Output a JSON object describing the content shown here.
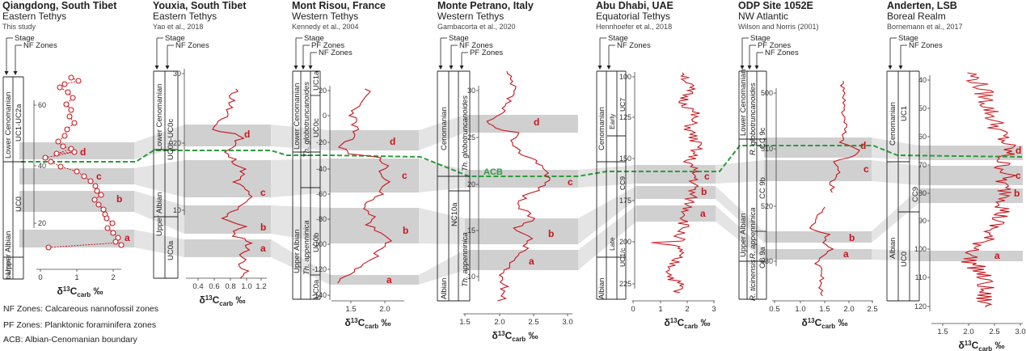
{
  "sections": [
    {
      "title": "Qiangdong, South Tibet",
      "region": "Eastern Tethys",
      "source": "This study",
      "fixed": [
        "Stage",
        "NF Zones"
      ],
      "stages": [
        "Lower Cenomanian",
        "Upper Albian"
      ],
      "zones": [
        "UC1-UC2a",
        "UC0",
        "barren"
      ],
      "depth_ticks": [
        "60",
        "40",
        "20"
      ],
      "x_ticks": [
        "0",
        "1",
        "2"
      ],
      "events": [
        "d",
        "c",
        "b",
        "a"
      ]
    },
    {
      "title": "Youxia, South Tibet",
      "region": "Eastern Tethys",
      "source": "Yao et al., 2018",
      "fixed": [
        "Stage",
        "NF Zones"
      ],
      "stages": [
        "Lower Cenomanian",
        "Upper Albian"
      ],
      "zones": [
        "UC0b-UC0c",
        "UC0a"
      ],
      "depth_ticks": [
        "30",
        "20",
        "10"
      ],
      "x_ticks": [
        "0.4",
        "0.6",
        "0.8",
        "1.0",
        "1.2"
      ],
      "events": [
        "d",
        "c",
        "b",
        "a"
      ]
    },
    {
      "title": "Mont Risou, France",
      "region": "Western Tethys",
      "source": "Kennedy et al., 2004",
      "fixed": [
        "Stage",
        "PF Zones",
        "NF Zones"
      ],
      "stages": [
        "Lower Cenomanian",
        "Upper Albian"
      ],
      "zones": [
        "Th. globotruncanoides",
        "Th. appenninica",
        "UC1a",
        "UC0c",
        "UC0b",
        "UC0a"
      ],
      "depth_ticks": [
        "20",
        "0",
        "-20",
        "-40",
        "-60",
        "-80",
        "-100",
        "-120",
        "-140"
      ],
      "x_ticks": [
        "1.5",
        "2.0"
      ],
      "events": [
        "d",
        "c",
        "b",
        "a"
      ]
    },
    {
      "title": "Monte Petrano, Italy",
      "region": "Western Tethys",
      "source": "Gambacorta et al., 2020",
      "fixed": [
        "Stage",
        "NF Zones",
        "PF Zones"
      ],
      "stages": [
        "Cenomanian",
        "Albian"
      ],
      "zones": [
        "NC10a",
        "Th. globotruncanoides",
        "Th. appenninica"
      ],
      "depth_ticks": [
        "30",
        "25",
        "20",
        "15",
        "10"
      ],
      "x_ticks": [
        "1.5",
        "2.0",
        "2.5",
        "3.0"
      ],
      "events": [
        "d",
        "c",
        "b",
        "a"
      ],
      "acb_label": "ACB"
    },
    {
      "title": "Abu Dhabi, UAE",
      "region": "Equatorial Tethys",
      "source": "Hennhoefer et al., 2018",
      "fixed": [
        "Stage",
        "NF Zones"
      ],
      "stages": [
        "Cenomanian",
        "Early",
        "Late",
        "Albian"
      ],
      "zones": [
        "UC7",
        "CC9",
        "UC1/c"
      ],
      "depth_ticks": [
        "100",
        "125",
        "150",
        "175",
        "200",
        "225"
      ],
      "x_ticks": [
        "0",
        "1",
        "2",
        "3"
      ],
      "events": [
        "c",
        "b",
        "a"
      ]
    },
    {
      "title": "ODP Site 1052E",
      "region": "NW Atlantic",
      "source": "Wilson and Norris (2001)",
      "fixed": [
        "Stage",
        "PF Zones",
        "NF Zones"
      ],
      "stages": [
        "Lower Cenomanian",
        "Upper Albian"
      ],
      "zones": [
        "R. globotruncanoides",
        "R. appenninica",
        "R. ticinensis",
        "CC 9c",
        "CC 9b",
        "CC 9a"
      ],
      "depth_ticks": [
        "500",
        "510",
        "520",
        "530"
      ],
      "x_ticks": [
        "0.5",
        "1.0",
        "1.5",
        "2.0",
        "2.5"
      ],
      "events": [
        "d",
        "c",
        "b",
        "a"
      ]
    },
    {
      "title": "Anderten, LSB",
      "region": "Boreal Realm",
      "source": "Bornemann et al., 2017",
      "fixed": [
        "Stage",
        "NF Zones"
      ],
      "stages": [
        "Cenomanian",
        "Albian"
      ],
      "zones": [
        "UC1",
        "CC9",
        "UC0"
      ],
      "depth_ticks": [
        "40",
        "50",
        "60",
        "70",
        "80",
        "90",
        "100",
        "110",
        "120"
      ],
      "x_ticks": [
        "1.5",
        "2.0",
        "2.5",
        "3.0"
      ],
      "events": [
        "d",
        "c",
        "b",
        "a"
      ]
    }
  ],
  "axis_label": "δ13Ccarb ‰",
  "axis_label_parts": {
    "d": "δ",
    "sup": "13",
    "c": "C",
    "sub": "carb",
    "unit": " ‰"
  },
  "legend": [
    "NF Zones: Calcareous nannofossil zones",
    "PF Zones: Planktonic foraminifera zones",
    "ACB: Albian-Cenomanian boundary"
  ],
  "colors": {
    "curve": "#c8161d",
    "band": "#d0d0d0",
    "connector": "#e4e4e4",
    "acb": "#2a9d3c",
    "marker_fill": "#ffffff"
  }
}
